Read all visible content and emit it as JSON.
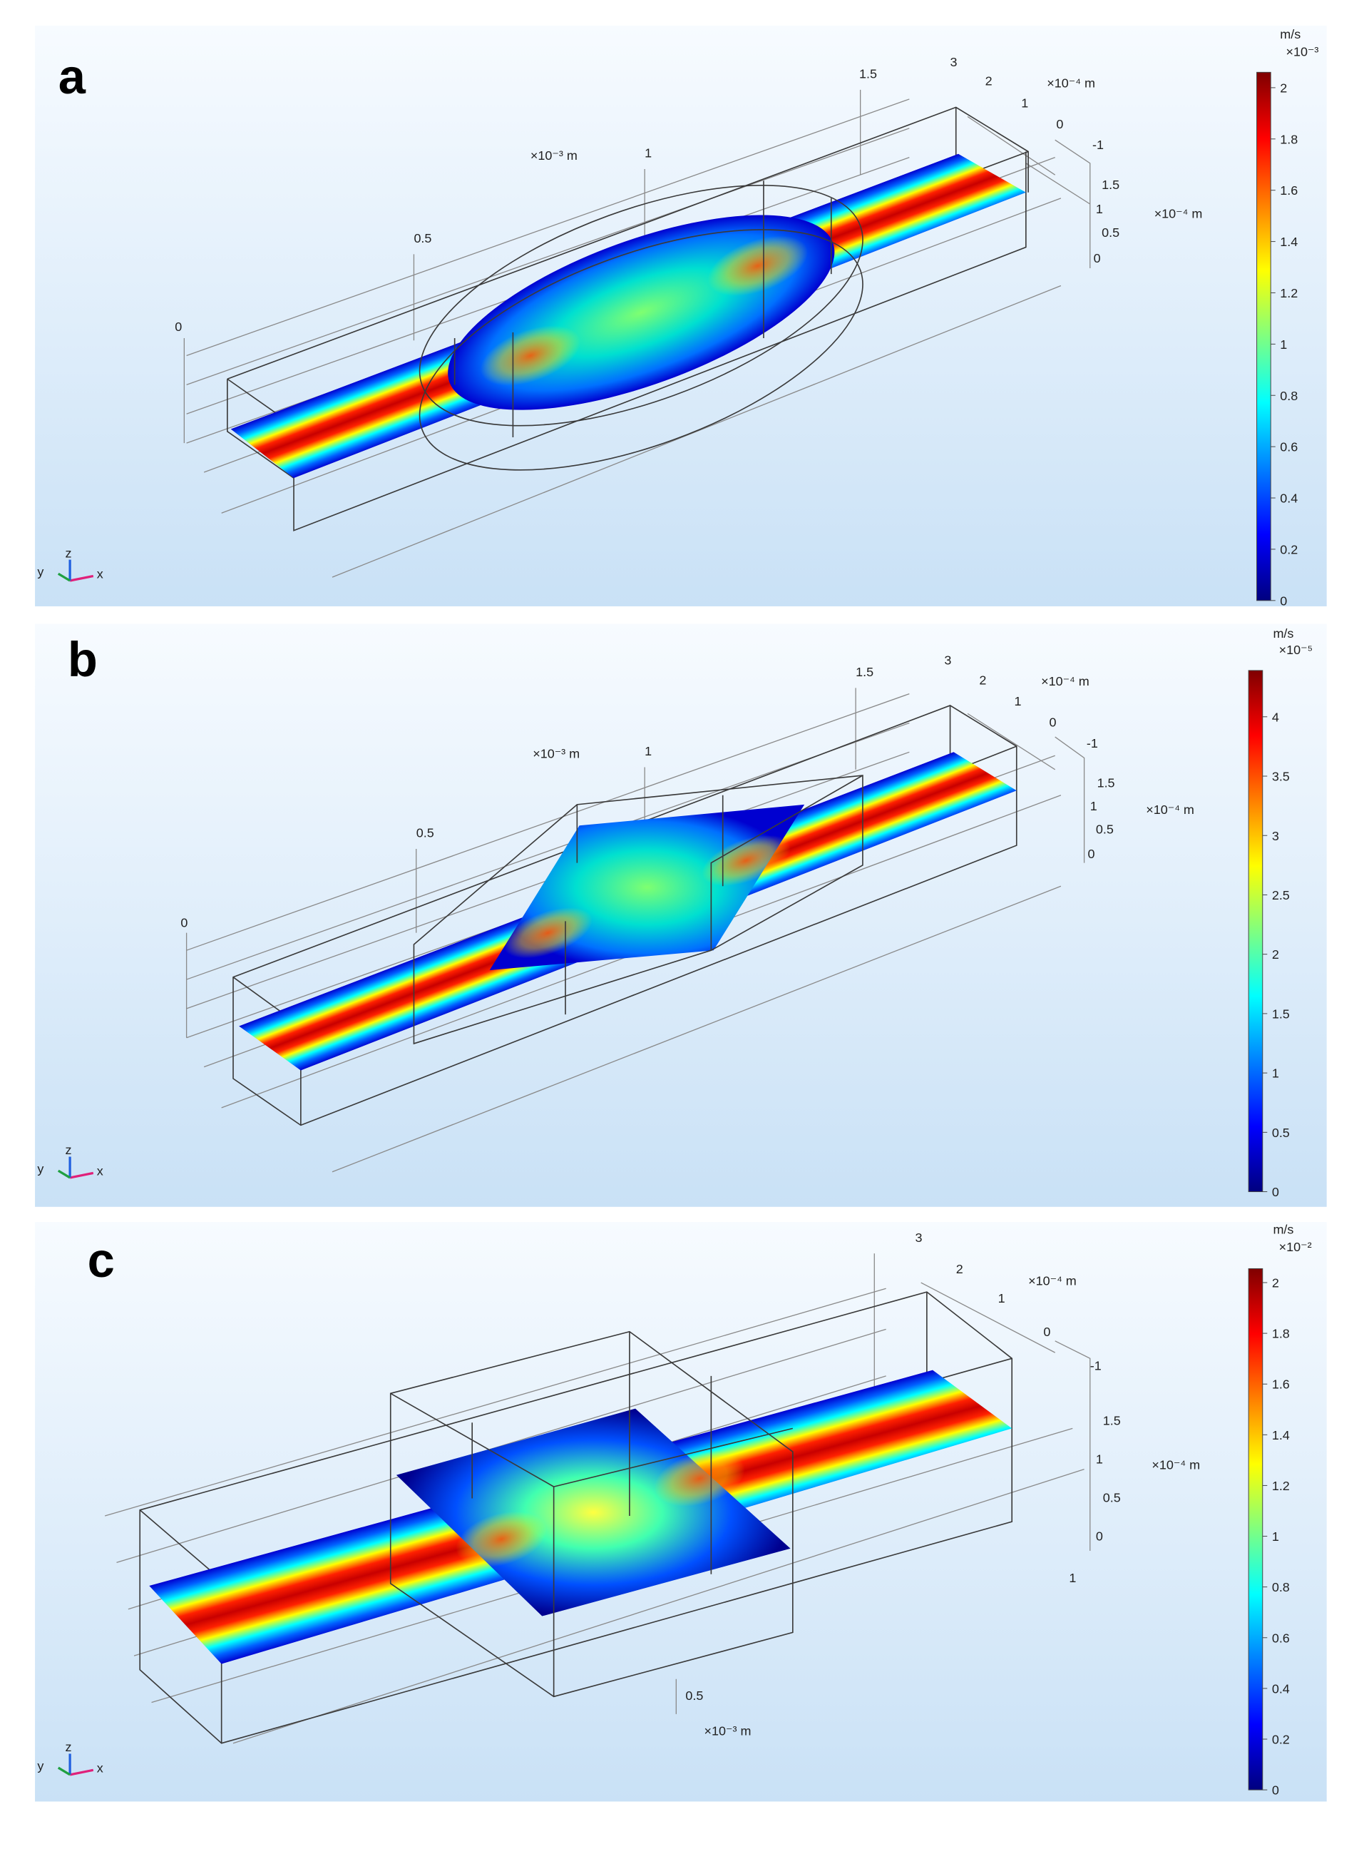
{
  "panels": [
    {
      "label": "a",
      "colorbar": {
        "unit": "m/s",
        "exponent": "×10⁻³",
        "range": [
          0,
          2.06
        ],
        "ticks": [
          0,
          0.2,
          0.4,
          0.6,
          0.8,
          1,
          1.2,
          1.4,
          1.6,
          1.8,
          2
        ]
      },
      "axes": {
        "x_unit": "×10⁻³ m",
        "x_ticks": [
          "0",
          "0.5",
          "1",
          "1.5"
        ],
        "y_unit": "×10⁻⁴ m",
        "y_ticks": [
          "3",
          "2",
          "1",
          "0",
          "-1"
        ],
        "z_unit": "×10⁻⁴ m",
        "z_ticks": [
          "1.5",
          "1",
          "0.5",
          "0"
        ]
      },
      "triad": {
        "y": "y",
        "z": "z",
        "x": "x"
      }
    },
    {
      "label": "b",
      "colorbar": {
        "unit": "m/s",
        "exponent": "×10⁻⁵",
        "range": [
          0,
          4.39
        ],
        "ticks": [
          0,
          0.5,
          1,
          1.5,
          2,
          2.5,
          3,
          3.5,
          4
        ]
      },
      "axes": {
        "x_unit": "×10⁻³ m",
        "x_ticks": [
          "0",
          "0.5",
          "1",
          "1.5"
        ],
        "y_unit": "×10⁻⁴ m",
        "y_ticks": [
          "3",
          "2",
          "1",
          "0",
          "-1"
        ],
        "z_unit": "×10⁻⁴ m",
        "z_ticks": [
          "1.5",
          "1",
          "0.5",
          "0"
        ]
      },
      "triad": {
        "y": "y",
        "z": "z",
        "x": "x"
      }
    },
    {
      "label": "c",
      "colorbar": {
        "unit": "m/s",
        "exponent": "×10⁻²",
        "range": [
          0,
          2.055
        ],
        "ticks": [
          0,
          0.2,
          0.4,
          0.6,
          0.8,
          1,
          1.2,
          1.4,
          1.6,
          1.8,
          2
        ]
      },
      "axes": {
        "x_unit": "×10⁻³ m",
        "x_ticks": [
          "0.5",
          "1"
        ],
        "y_unit": "×10⁻⁴ m",
        "y_ticks": [
          "3",
          "2",
          "1",
          "0",
          "-1"
        ],
        "z_unit": "×10⁻⁴ m",
        "z_ticks": [
          "1.5",
          "1",
          "0.5",
          "0"
        ]
      },
      "triad": {
        "y": "y",
        "z": "z",
        "x": "x"
      }
    }
  ]
}
